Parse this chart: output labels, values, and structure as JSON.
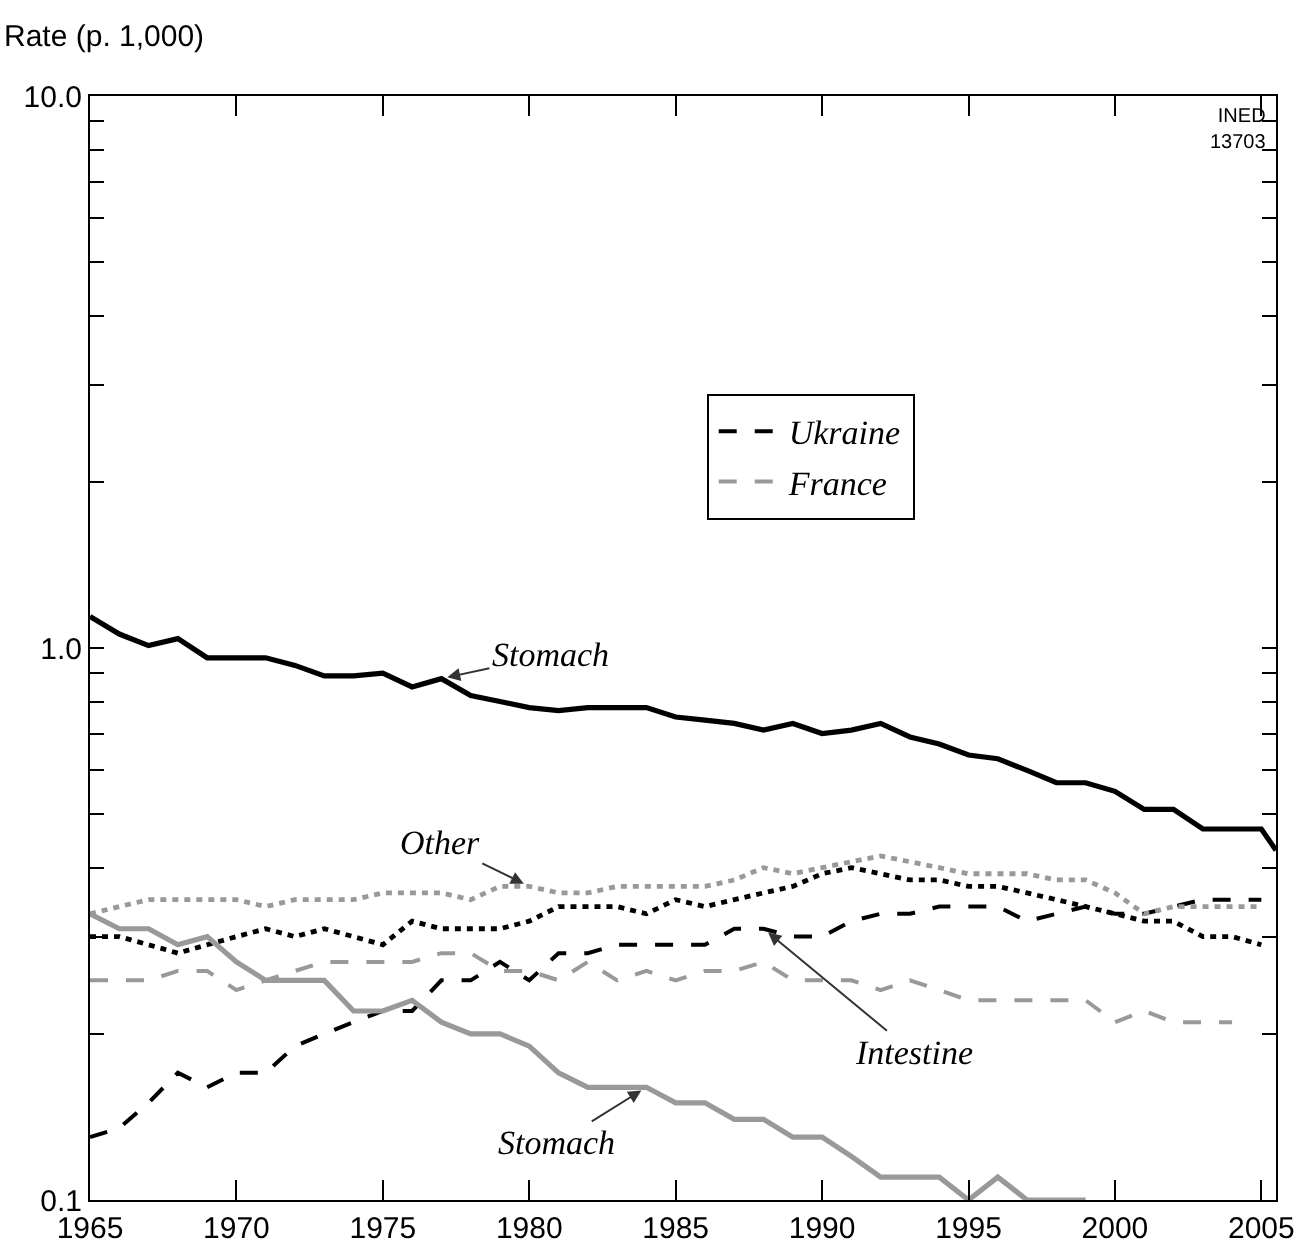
{
  "chart_data": {
    "type": "line",
    "ylabel": "Rate (p. 1,000)",
    "x": [
      1965,
      1966,
      1967,
      1968,
      1969,
      1970,
      1971,
      1972,
      1973,
      1974,
      1975,
      1976,
      1977,
      1978,
      1979,
      1980,
      1981,
      1982,
      1983,
      1984,
      1985,
      1986,
      1987,
      1988,
      1989,
      1990,
      1991,
      1992,
      1993,
      1994,
      1995,
      1996,
      1997,
      1998,
      1999,
      2000,
      2001,
      2002,
      2003,
      2004,
      2005
    ],
    "series": [
      {
        "color": "#000000",
        "line_style": "dotted",
        "values": [
          0.3,
          0.3,
          0.29,
          0.28,
          0.29,
          0.3,
          0.31,
          0.3,
          0.31,
          0.3,
          0.29,
          0.32,
          0.31,
          0.31,
          0.31,
          0.32,
          0.34,
          0.34,
          0.34,
          0.33,
          0.35,
          0.34,
          0.35,
          0.36,
          0.37,
          0.39,
          0.4,
          0.39,
          0.38,
          0.38,
          0.37,
          0.37,
          0.36,
          0.35,
          0.34,
          0.33,
          0.32,
          0.32,
          0.3,
          0.3,
          0.29
        ]
      },
      {
        "name": "Ukraine",
        "color": "#000000",
        "line_style": "dashed",
        "values": [
          0.13,
          0.135,
          0.15,
          0.17,
          0.16,
          0.17,
          0.17,
          0.19,
          0.2,
          0.21,
          0.22,
          0.22,
          0.25,
          0.25,
          0.27,
          0.25,
          0.28,
          0.28,
          0.29,
          0.29,
          0.29,
          0.29,
          0.31,
          0.31,
          0.3,
          0.3,
          0.32,
          0.33,
          0.33,
          0.34,
          0.34,
          0.34,
          0.32,
          0.33,
          0.34,
          0.33,
          0.33,
          0.34,
          0.35,
          0.35,
          0.35
        ]
      },
      {
        "color": "#000000",
        "line_style": "solid",
        "x": [
          1965,
          1966,
          1967,
          1968,
          1969,
          1970,
          1971,
          1972,
          1973,
          1974,
          1975,
          1976,
          1977,
          1978,
          1979,
          1980,
          1981,
          1982,
          1983,
          1984,
          1985,
          1986,
          1987,
          1988,
          1989,
          1990,
          1991,
          1992,
          1993,
          1994,
          1995,
          1996,
          1997,
          1998,
          1999,
          2000,
          2001,
          2002,
          2003,
          2004,
          2005,
          2005.5
        ],
        "values": [
          1.14,
          1.06,
          1.01,
          1.04,
          0.96,
          0.96,
          0.96,
          0.93,
          0.89,
          0.89,
          0.9,
          0.85,
          0.88,
          0.82,
          0.8,
          0.78,
          0.77,
          0.78,
          0.78,
          0.78,
          0.75,
          0.74,
          0.73,
          0.71,
          0.73,
          0.7,
          0.71,
          0.73,
          0.69,
          0.67,
          0.64,
          0.63,
          0.6,
          0.57,
          0.57,
          0.55,
          0.51,
          0.51,
          0.47,
          0.47,
          0.47,
          0.43
        ]
      },
      {
        "color": "#999999",
        "line_style": "dotted",
        "values": [
          0.33,
          0.34,
          0.35,
          0.35,
          0.35,
          0.35,
          0.34,
          0.35,
          0.35,
          0.35,
          0.36,
          0.36,
          0.36,
          0.35,
          0.37,
          0.37,
          0.36,
          0.36,
          0.37,
          0.37,
          0.37,
          0.37,
          0.38,
          0.4,
          0.39,
          0.4,
          0.41,
          0.42,
          0.41,
          0.4,
          0.39,
          0.39,
          0.39,
          0.38,
          0.38,
          0.36,
          0.33,
          0.34,
          0.34,
          0.34,
          0.34
        ]
      },
      {
        "name": "France",
        "color": "#999999",
        "line_style": "dashed",
        "x": [
          1965,
          1966,
          1967,
          1968,
          1969,
          1970,
          1971,
          1972,
          1973,
          1974,
          1975,
          1976,
          1977,
          1978,
          1979,
          1980,
          1981,
          1982,
          1983,
          1984,
          1985,
          1986,
          1987,
          1988,
          1989,
          1990,
          1991,
          1992,
          1993,
          1994,
          1995,
          1996,
          1997,
          1998,
          1999,
          2000,
          2001,
          2002,
          2003,
          2004
        ],
        "values": [
          0.25,
          0.25,
          0.25,
          0.26,
          0.26,
          0.24,
          0.25,
          0.26,
          0.27,
          0.27,
          0.27,
          0.27,
          0.28,
          0.28,
          0.26,
          0.26,
          0.25,
          0.27,
          0.25,
          0.26,
          0.25,
          0.26,
          0.26,
          0.27,
          0.25,
          0.25,
          0.25,
          0.24,
          0.25,
          0.24,
          0.23,
          0.23,
          0.23,
          0.23,
          0.23,
          0.21,
          0.22,
          0.21,
          0.21,
          0.21
        ]
      },
      {
        "color": "#999999",
        "line_style": "solid",
        "x": [
          1965,
          1966,
          1967,
          1968,
          1969,
          1970,
          1971,
          1972,
          1973,
          1974,
          1975,
          1976,
          1977,
          1978,
          1979,
          1980,
          1981,
          1982,
          1983,
          1984,
          1985,
          1986,
          1987,
          1988,
          1989,
          1990,
          1991,
          1992,
          1993,
          1994,
          1995,
          1996,
          1997,
          1998,
          1999
        ],
        "values": [
          0.33,
          0.31,
          0.31,
          0.29,
          0.3,
          0.27,
          0.25,
          0.25,
          0.25,
          0.22,
          0.22,
          0.23,
          0.21,
          0.2,
          0.2,
          0.19,
          0.17,
          0.16,
          0.16,
          0.16,
          0.15,
          0.15,
          0.14,
          0.14,
          0.13,
          0.13,
          0.12,
          0.11,
          0.11,
          0.11,
          0.1,
          0.11,
          0.1,
          0.1,
          0.1
        ]
      }
    ],
    "xlim": [
      1965,
      2005.5
    ],
    "xticks": [
      1965,
      1970,
      1975,
      1980,
      1985,
      1990,
      1995,
      2000,
      2005
    ],
    "ylim": [
      0.1,
      10
    ],
    "log": true,
    "yticks": [
      {
        "value": 0.1,
        "label": "0.1"
      },
      {
        "value": 0.2,
        "label": null
      },
      {
        "value": 0.3,
        "label": null
      },
      {
        "value": 0.4,
        "label": null
      },
      {
        "value": 0.5,
        "label": null
      },
      {
        "value": 0.6,
        "label": null
      },
      {
        "value": 0.7,
        "label": null
      },
      {
        "value": 0.8,
        "label": null
      },
      {
        "value": 0.9,
        "label": null
      },
      {
        "value": 1,
        "label": "1.0"
      },
      {
        "value": 2,
        "label": null
      },
      {
        "value": 3,
        "label": null
      },
      {
        "value": 4,
        "label": null
      },
      {
        "value": 5,
        "label": null
      },
      {
        "value": 6,
        "label": null
      },
      {
        "value": 7,
        "label": null
      },
      {
        "value": 8,
        "label": null
      },
      {
        "value": 9,
        "label": null
      },
      {
        "value": 10,
        "label": "10.0"
      }
    ],
    "grid": false,
    "legend": "center",
    "marker": "none",
    "annotations": [
      {
        "text": "Stomach",
        "x": 1977,
        "y": 0.88
      },
      {
        "text": "Other",
        "x": 1980,
        "y": 0.37
      },
      {
        "text": "Intestine",
        "x": 1988,
        "y": 0.31
      },
      {
        "text": "Stomach",
        "x": 1984,
        "y": 0.16
      },
      "INED\n13703"
    ]
  }
}
